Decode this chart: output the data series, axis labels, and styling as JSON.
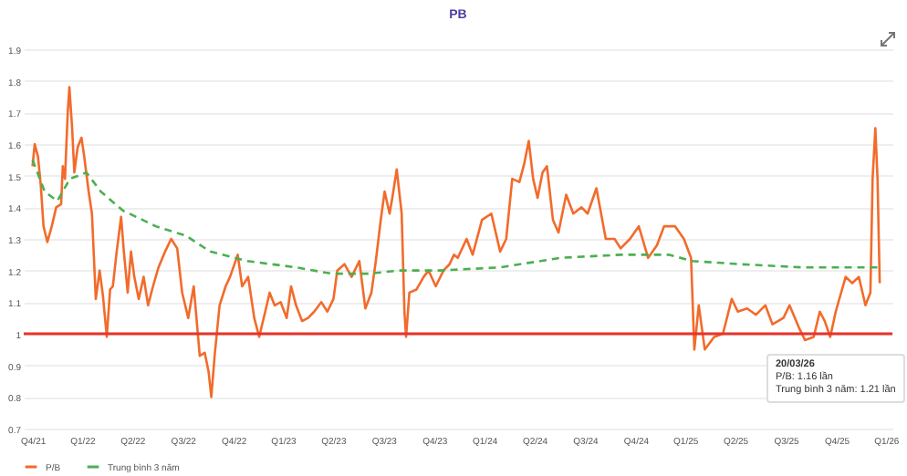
{
  "chart_data": {
    "type": "line",
    "title": "PB",
    "legend": "bottom",
    "grid": "y",
    "ylim": [
      0.7,
      1.9
    ],
    "yticks": [
      0.7,
      0.8,
      0.9,
      1,
      1.1,
      1.2,
      1.3,
      1.4,
      1.5,
      1.6,
      1.7,
      1.8,
      1.9
    ],
    "xlim": [
      "2021-12-15",
      "2026-04-12"
    ],
    "xticks": [
      {
        "value": "2021-12-31",
        "label": "Q4/21"
      },
      {
        "value": "2022-03-31",
        "label": "Q1/22"
      },
      {
        "value": "2022-06-30",
        "label": "Q2/22"
      },
      {
        "value": "2022-09-30",
        "label": "Q3/22"
      },
      {
        "value": "2022-12-31",
        "label": "Q4/22"
      },
      {
        "value": "2023-03-31",
        "label": "Q1/23"
      },
      {
        "value": "2023-06-30",
        "label": "Q2/23"
      },
      {
        "value": "2023-09-30",
        "label": "Q3/23"
      },
      {
        "value": "2023-12-31",
        "label": "Q4/23"
      },
      {
        "value": "2024-03-31",
        "label": "Q1/24"
      },
      {
        "value": "2024-06-30",
        "label": "Q2/24"
      },
      {
        "value": "2024-09-30",
        "label": "Q3/24"
      },
      {
        "value": "2024-12-31",
        "label": "Q4/24"
      },
      {
        "value": "2025-03-31",
        "label": "Q1/25"
      },
      {
        "value": "2025-06-30",
        "label": "Q2/25"
      },
      {
        "value": "2025-09-30",
        "label": "Q3/25"
      },
      {
        "value": "2025-12-31",
        "label": "Q4/25"
      },
      {
        "value": "2026-03-31",
        "label": "Q1/26"
      }
    ],
    "ref_lines": [
      {
        "axis": "y",
        "value": 1,
        "label": null,
        "color": "#e8332b"
      }
    ],
    "annotations": [
      "20/03/26",
      "P/B: 1.16 lần",
      "Trung bình 3 năm: 1.21 lần"
    ],
    "series": [
      {
        "name": "P/B",
        "color": "#f26b2b",
        "line_style": "solid",
        "x": [
          "2021-12-31",
          "2022-01-04",
          "2022-01-10",
          "2022-01-15",
          "2022-01-20",
          "2022-01-27",
          "2022-02-04",
          "2022-02-12",
          "2022-02-21",
          "2022-02-24",
          "2022-02-28",
          "2022-03-05",
          "2022-03-08",
          "2022-03-13",
          "2022-03-17",
          "2022-03-23",
          "2022-03-30",
          "2022-04-04",
          "2022-04-12",
          "2022-04-18",
          "2022-04-25",
          "2022-05-02",
          "2022-05-08",
          "2022-05-15",
          "2022-05-21",
          "2022-05-26",
          "2022-06-02",
          "2022-06-10",
          "2022-06-15",
          "2022-06-22",
          "2022-06-28",
          "2022-07-04",
          "2022-07-12",
          "2022-07-21",
          "2022-07-29",
          "2022-08-07",
          "2022-08-17",
          "2022-08-29",
          "2022-09-09",
          "2022-09-20",
          "2022-09-29",
          "2022-10-10",
          "2022-10-20",
          "2022-10-31",
          "2022-11-09",
          "2022-11-16",
          "2022-11-21",
          "2022-11-27",
          "2022-12-06",
          "2022-12-17",
          "2022-12-25",
          "2023-01-08",
          "2023-01-16",
          "2023-01-27",
          "2023-02-07",
          "2023-02-16",
          "2023-02-27",
          "2023-03-07",
          "2023-03-16",
          "2023-03-27",
          "2023-04-07",
          "2023-04-15",
          "2023-04-24",
          "2023-05-05",
          "2023-05-16",
          "2023-05-27",
          "2023-06-09",
          "2023-06-20",
          "2023-07-01",
          "2023-07-08",
          "2023-07-21",
          "2023-08-03",
          "2023-08-17",
          "2023-08-28",
          "2023-09-08",
          "2023-09-16",
          "2023-09-25",
          "2023-10-02",
          "2023-10-11",
          "2023-10-16",
          "2023-10-24",
          "2023-11-02",
          "2023-11-07",
          "2023-11-10",
          "2023-11-16",
          "2023-11-29",
          "2023-12-12",
          "2023-12-21",
          "2024-01-03",
          "2024-01-17",
          "2024-01-28",
          "2024-02-05",
          "2024-02-12",
          "2024-02-28",
          "2024-03-10",
          "2024-03-27",
          "2024-04-13",
          "2024-04-29",
          "2024-05-10",
          "2024-05-21",
          "2024-06-03",
          "2024-06-12",
          "2024-06-20",
          "2024-06-28",
          "2024-07-06",
          "2024-07-15",
          "2024-07-23",
          "2024-08-03",
          "2024-08-13",
          "2024-08-27",
          "2024-09-09",
          "2024-09-24",
          "2024-10-05",
          "2024-10-21",
          "2024-11-07",
          "2024-11-23",
          "2024-12-04",
          "2024-12-21",
          "2025-01-06",
          "2025-01-23",
          "2025-02-08",
          "2025-02-21",
          "2025-03-13",
          "2025-03-29",
          "2025-04-11",
          "2025-04-17",
          "2025-04-25",
          "2025-05-06",
          "2025-05-23",
          "2025-06-08",
          "2025-06-24",
          "2025-07-05",
          "2025-07-22",
          "2025-08-07",
          "2025-08-24",
          "2025-09-06",
          "2025-09-26",
          "2025-10-07",
          "2025-10-24",
          "2025-11-04",
          "2025-11-20",
          "2025-12-01",
          "2025-12-10",
          "2025-12-20",
          "2025-12-30",
          "2026-01-17",
          "2026-01-29",
          "2026-02-10",
          "2026-02-22",
          "2026-03-03",
          "2026-03-07",
          "2026-03-12",
          "2026-03-16",
          "2026-03-18",
          "2026-03-20"
        ],
        "values": [
          1.53,
          1.6,
          1.56,
          1.47,
          1.34,
          1.29,
          1.34,
          1.4,
          1.41,
          1.53,
          1.49,
          1.7,
          1.78,
          1.65,
          1.51,
          1.59,
          1.62,
          1.56,
          1.45,
          1.38,
          1.11,
          1.2,
          1.12,
          0.99,
          1.14,
          1.15,
          1.26,
          1.37,
          1.26,
          1.13,
          1.26,
          1.18,
          1.11,
          1.18,
          1.09,
          1.15,
          1.21,
          1.26,
          1.3,
          1.27,
          1.13,
          1.05,
          1.15,
          0.93,
          0.94,
          0.88,
          0.8,
          0.93,
          1.09,
          1.15,
          1.18,
          1.25,
          1.15,
          1.18,
          1.05,
          0.99,
          1.07,
          1.13,
          1.09,
          1.1,
          1.05,
          1.15,
          1.09,
          1.04,
          1.05,
          1.07,
          1.1,
          1.07,
          1.11,
          1.2,
          1.22,
          1.18,
          1.23,
          1.08,
          1.13,
          1.23,
          1.36,
          1.45,
          1.38,
          1.43,
          1.52,
          1.38,
          1.07,
          0.99,
          1.13,
          1.14,
          1.18,
          1.2,
          1.15,
          1.2,
          1.22,
          1.25,
          1.24,
          1.3,
          1.25,
          1.36,
          1.38,
          1.26,
          1.3,
          1.49,
          1.48,
          1.54,
          1.61,
          1.49,
          1.43,
          1.51,
          1.53,
          1.36,
          1.32,
          1.44,
          1.38,
          1.4,
          1.38,
          1.46,
          1.3,
          1.3,
          1.27,
          1.3,
          1.34,
          1.24,
          1.28,
          1.34,
          1.34,
          1.3,
          1.24,
          0.95,
          1.09,
          0.95,
          0.99,
          1.0,
          1.11,
          1.07,
          1.08,
          1.06,
          1.09,
          1.03,
          1.05,
          1.09,
          1.02,
          0.98,
          0.99,
          1.07,
          1.04,
          0.99,
          1.07,
          1.18,
          1.16,
          1.18,
          1.09,
          1.13,
          1.49,
          1.65,
          1.49,
          1.32,
          1.16
        ]
      },
      {
        "name": "Trung bình 3 năm",
        "color": "#4caf50",
        "line_style": "dashed",
        "x": [
          "2021-12-31",
          "2022-01-22",
          "2022-02-14",
          "2022-03-09",
          "2022-04-08",
          "2022-05-04",
          "2022-06-13",
          "2022-08-12",
          "2022-10-06",
          "2022-11-19",
          "2023-01-25",
          "2023-04-24",
          "2023-06-28",
          "2023-09-03",
          "2023-10-27",
          "2024-01-11",
          "2024-04-29",
          "2024-08-16",
          "2024-12-04",
          "2025-03-01",
          "2025-04-14",
          "2025-07-10",
          "2025-10-30",
          "2026-02-10",
          "2026-03-20"
        ],
        "values": [
          1.55,
          1.45,
          1.42,
          1.49,
          1.51,
          1.45,
          1.39,
          1.34,
          1.31,
          1.26,
          1.23,
          1.21,
          1.19,
          1.19,
          1.2,
          1.2,
          1.21,
          1.24,
          1.25,
          1.25,
          1.23,
          1.22,
          1.21,
          1.21,
          1.21
        ]
      }
    ]
  }
}
